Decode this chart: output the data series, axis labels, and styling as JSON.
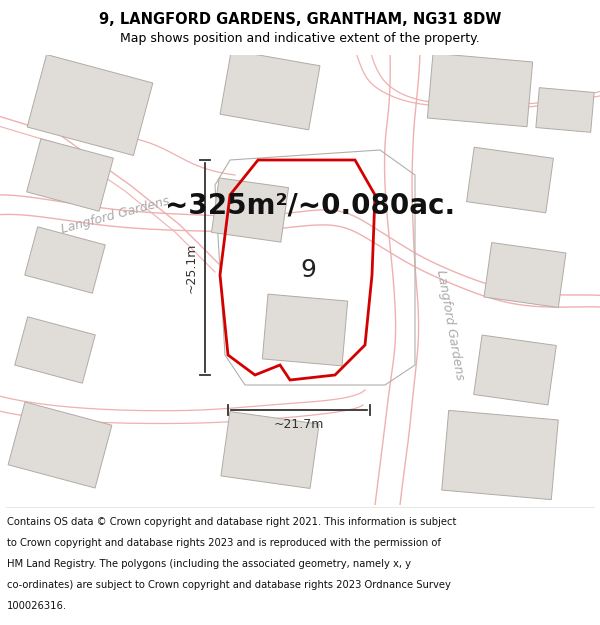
{
  "title": "9, LANGFORD GARDENS, GRANTHAM, NG31 8DW",
  "subtitle": "Map shows position and indicative extent of the property.",
  "area_text": "~325m²/~0.080ac.",
  "dim_width": "~21.7m",
  "dim_height": "~25.1m",
  "property_number": "9",
  "footer_lines": [
    "Contains OS data © Crown copyright and database right 2021. This information is subject",
    "to Crown copyright and database rights 2023 and is reproduced with the permission of",
    "HM Land Registry. The polygons (including the associated geometry, namely x, y",
    "co-ordinates) are subject to Crown copyright and database rights 2023 Ordnance Survey",
    "100026316."
  ],
  "bg_color": "#f7f5f3",
  "map_bg": "#f7f5f3",
  "building_color": "#e0ddd8",
  "building_edge": "#b0aba5",
  "property_edge": "#d40000",
  "road_line_color": "#f0b0b0",
  "road_outline_color": "#cccccc",
  "title_fontsize": 10.5,
  "subtitle_fontsize": 9,
  "footer_fontsize": 7.2,
  "area_fontsize": 20,
  "street_label_color": "#aaaaaa",
  "dim_color": "#333333"
}
